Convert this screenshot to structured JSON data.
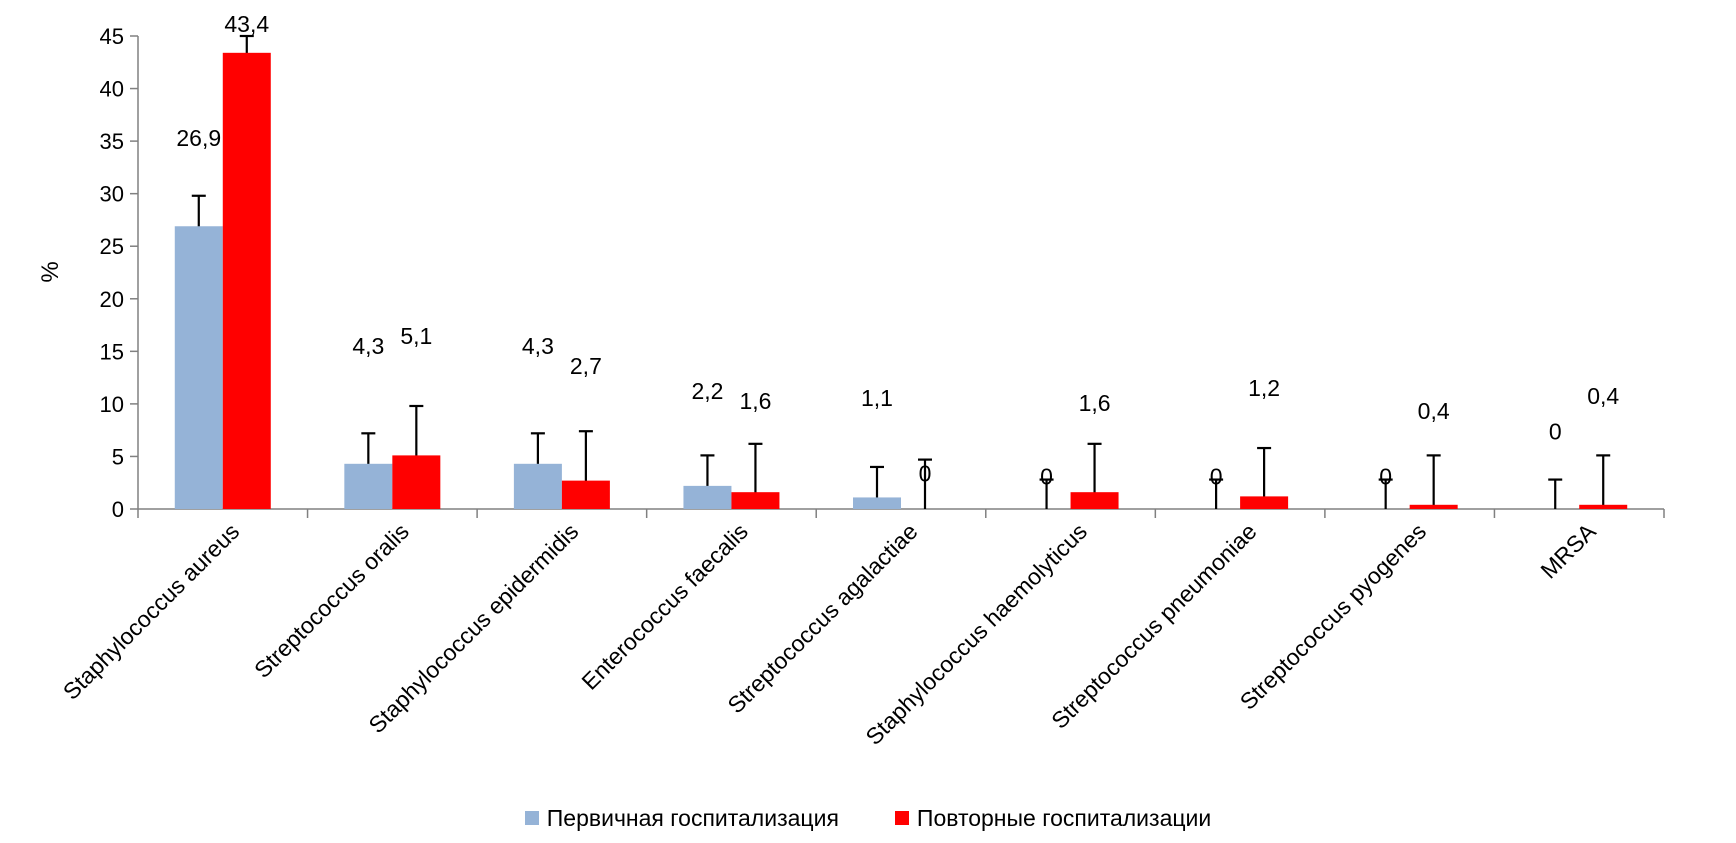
{
  "colors": {
    "primary_series": "#95b3d7",
    "repeat_series": "#ff0000",
    "axis": "#808080",
    "error_bar": "#000000"
  },
  "legend": {
    "items": [
      {
        "label": "Первичная госпитализация",
        "color": "#95b3d7"
      },
      {
        "label": "Повторные госпитализации",
        "color": "#ff0000"
      }
    ],
    "position": "bottom"
  },
  "chart_data": {
    "type": "bar",
    "title": "",
    "xlabel": "",
    "ylabel": "%",
    "ylim": [
      0,
      45
    ],
    "yticks": [
      0,
      5,
      10,
      15,
      20,
      25,
      30,
      35,
      40,
      45
    ],
    "grid": false,
    "categories": [
      "Staphylococcus aureus",
      "Streptococcus oralis",
      "Staphylococcus epidermidis",
      "Enterococcus faecalis",
      "Streptococcus agalactiae",
      "Staphylococcus haemolyticus",
      "Streptococcus pneumoniae",
      "Streptococcus pyogenes",
      "MRSA"
    ],
    "series": [
      {
        "name": "Первичная госпитализация",
        "color": "#95b3d7",
        "values": [
          26.9,
          4.3,
          4.3,
          2.2,
          1.1,
          0,
          0,
          0,
          0
        ],
        "labels": [
          "26,9",
          "4,3",
          "4,3",
          "2,2",
          "1,1",
          "0",
          "0",
          "0",
          "0"
        ],
        "error_low": [
          24.0,
          1.4,
          1.4,
          0,
          0,
          0,
          0,
          0,
          0
        ],
        "error_high": [
          29.8,
          7.2,
          7.2,
          5.1,
          4.0,
          2.8,
          2.8,
          2.8,
          2.8
        ]
      },
      {
        "name": "Повторные госпитализации",
        "color": "#ff0000",
        "values": [
          43.4,
          5.1,
          2.7,
          1.6,
          0,
          1.6,
          1.2,
          0.4,
          0.4
        ],
        "labels": [
          "43,4",
          "5,1",
          "2,7",
          "1,6",
          "0",
          "1,6",
          "1,2",
          "0,4",
          "0,4"
        ],
        "error_low": [
          38.8,
          0.4,
          0,
          0,
          0,
          0,
          0,
          0,
          0
        ],
        "error_high": [
          45.0,
          9.8,
          7.4,
          6.2,
          4.7,
          6.2,
          5.8,
          5.1,
          5.1
        ]
      }
    ]
  }
}
